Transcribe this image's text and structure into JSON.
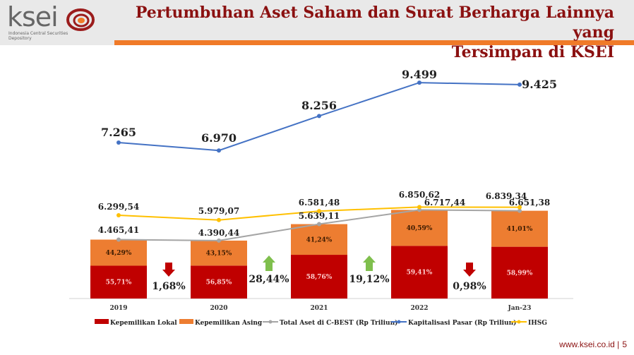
{
  "header": {
    "title_line1": "Pertumbuhan Aset Saham dan Surat Berharga Lainnya yang",
    "title_line2": "Tersimpan di KSEI",
    "logo_text": "ksei",
    "logo_subtitle": "Indonesia Central Securities Depository"
  },
  "footer": {
    "url": "www.ksei.co.id |",
    "page": "5"
  },
  "colors": {
    "lokal": "#c00000",
    "asing": "#ed7d31",
    "total_aset": "#a5a5a5",
    "kapitalisasi": "#4472c4",
    "ihsg": "#ffc000",
    "up": "#7fbf4d",
    "down": "#c00000",
    "title": "#8b1111",
    "accent": "#f07a28"
  },
  "chart_data": {
    "type": "bar",
    "categories": [
      "2019",
      "2020",
      "2021",
      "2022",
      "Jan-23"
    ],
    "series": [
      {
        "name": "Kepemilikan Lokal",
        "type": "stacked-bar",
        "values": [
          55.71,
          56.85,
          58.76,
          59.41,
          58.99
        ],
        "labels": [
          "55,71%",
          "56,85%",
          "58,76%",
          "59,41%",
          "58,99%"
        ]
      },
      {
        "name": "Kepemilikan Asing",
        "type": "stacked-bar",
        "values": [
          44.29,
          43.15,
          41.24,
          40.59,
          41.01
        ],
        "labels": [
          "44,29%",
          "43,15%",
          "41,24%",
          "40,59%",
          "41,01%"
        ]
      },
      {
        "name": "Total Aset di C-BEST (Rp Triliun)",
        "type": "line",
        "values": [
          4465.41,
          4390.44,
          5639.11,
          6717.44,
          6651.38
        ],
        "labels": [
          "4.465,41",
          "4.390,44",
          "5.639,11",
          "6.717,44",
          "6.651,38"
        ]
      },
      {
        "name": "Kapitalisasi Pasar (Rp Triliun)",
        "type": "line",
        "values": [
          7265,
          6970,
          8256,
          9499,
          9425
        ],
        "labels": [
          "7.265",
          "6.970",
          "8.256",
          "9.499",
          "9.425"
        ]
      },
      {
        "name": "IHSG",
        "type": "line",
        "values": [
          6299.54,
          5979.07,
          6581.48,
          6850.62,
          6839.34
        ],
        "labels": [
          "6.299,54",
          "5.979,07",
          "6.581,48",
          "6.850,62",
          "6.839,34"
        ]
      }
    ],
    "growth": [
      {
        "label": "1,68%",
        "direction": "down"
      },
      {
        "label": "28,44%",
        "direction": "up"
      },
      {
        "label": "19,12%",
        "direction": "up"
      },
      {
        "label": "0,98%",
        "direction": "down"
      }
    ],
    "legend_position": "bottom",
    "grid": false
  }
}
